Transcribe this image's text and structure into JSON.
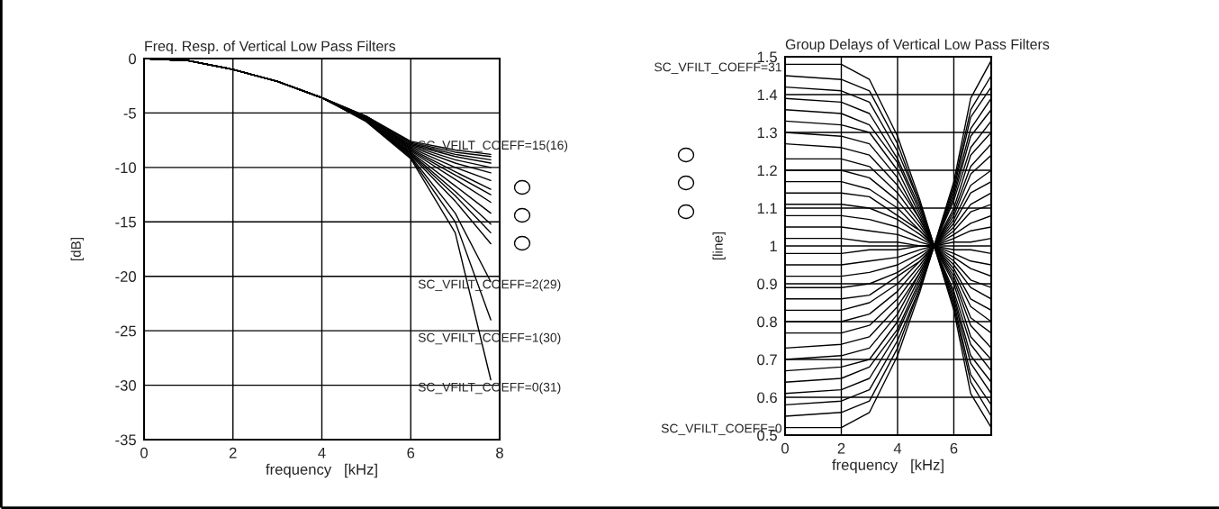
{
  "chart_data": [
    {
      "type": "line",
      "title": "Freq. Resp. of Vertical Low Pass Filters",
      "xlabel": "frequency   [kHz]",
      "ylabel": "[dB]",
      "x": [
        0,
        1,
        2,
        3,
        4,
        5,
        6,
        7,
        7.8
      ],
      "xlim": [
        0,
        8
      ],
      "ylim": [
        -35,
        0
      ],
      "xticks": [
        0,
        2,
        4,
        6,
        8
      ],
      "yticks": [
        -35,
        -30,
        -25,
        -20,
        -15,
        -10,
        -5,
        0
      ],
      "grid": true,
      "legend": false,
      "series": [
        {
          "color": "#000000",
          "values": [
            0,
            -0.2,
            -1,
            -2.1,
            -3.6,
            -5.3,
            -7.6,
            -8.4,
            -8.8
          ]
        },
        {
          "color": "#000000",
          "values": [
            0,
            -0.2,
            -1,
            -2.1,
            -3.6,
            -5.3,
            -7.7,
            -8.6,
            -9.0
          ]
        },
        {
          "color": "#000000",
          "values": [
            0,
            -0.2,
            -1,
            -2.1,
            -3.6,
            -5.3,
            -7.8,
            -8.8,
            -9.3
          ]
        },
        {
          "color": "#000000",
          "values": [
            0,
            -0.2,
            -1,
            -2.1,
            -3.6,
            -5.4,
            -7.9,
            -9.0,
            -9.6
          ]
        },
        {
          "color": "#000000",
          "values": [
            0,
            -0.2,
            -1,
            -2.1,
            -3.6,
            -5.4,
            -8.0,
            -9.3,
            -10.0
          ]
        },
        {
          "color": "#000000",
          "values": [
            0,
            -0.2,
            -1,
            -2.1,
            -3.6,
            -5.4,
            -8.1,
            -9.6,
            -10.5
          ]
        },
        {
          "color": "#000000",
          "values": [
            0,
            -0.2,
            -1,
            -2.1,
            -3.6,
            -5.4,
            -8.2,
            -10.0,
            -11.2
          ]
        },
        {
          "color": "#000000",
          "values": [
            0,
            -0.2,
            -1,
            -2.1,
            -3.6,
            -5.5,
            -8.3,
            -10.4,
            -12.0
          ]
        },
        {
          "color": "#000000",
          "values": [
            0,
            -0.2,
            -1,
            -2.1,
            -3.6,
            -5.5,
            -8.4,
            -10.7,
            -12.5
          ]
        },
        {
          "color": "#000000",
          "values": [
            0,
            -0.2,
            -1,
            -2.1,
            -3.6,
            -5.5,
            -8.5,
            -11.1,
            -13.2
          ]
        },
        {
          "color": "#000000",
          "values": [
            0,
            -0.2,
            -1,
            -2.1,
            -3.6,
            -5.6,
            -8.6,
            -11.7,
            -14.2
          ]
        },
        {
          "color": "#000000",
          "values": [
            0,
            -0.2,
            -1,
            -2.1,
            -3.6,
            -5.6,
            -8.7,
            -12.2,
            -15.2
          ]
        },
        {
          "color": "#000000",
          "values": [
            0,
            -0.2,
            -1,
            -2.1,
            -3.6,
            -5.6,
            -8.8,
            -12.6,
            -16.0
          ]
        },
        {
          "color": "#000000",
          "values": [
            0,
            -0.2,
            -1,
            -2.1,
            -3.6,
            -5.7,
            -8.9,
            -13.1,
            -17.0
          ]
        },
        {
          "color": "#000000",
          "values": [
            0,
            -0.2,
            -1,
            -2.1,
            -3.6,
            -5.7,
            -9.0,
            -14.2,
            -20.5
          ]
        },
        {
          "color": "#000000",
          "values": [
            0,
            -0.2,
            -1,
            -2.1,
            -3.6,
            -5.7,
            -9.1,
            -15.0,
            -24.0
          ]
        },
        {
          "color": "#000000",
          "values": [
            0,
            -0.2,
            -1,
            -2.1,
            -3.6,
            -5.8,
            -9.2,
            -16.0,
            -29.5
          ]
        }
      ],
      "annotations": [
        "SC_VFILT_COEFF=15(16)",
        "SC_VFILT_COEFF=2(29)",
        "SC_VFILT_COEFF=1(30)",
        "SC_VFILT_COEFF=0(31)"
      ]
    },
    {
      "type": "line",
      "title": "Group Delays of Vertical Low Pass Filters",
      "xlabel": "frequency   [kHz]",
      "ylabel": "[line]",
      "x": [
        0,
        2,
        3,
        4,
        4.8,
        5.3,
        6,
        6.6,
        7.33
      ],
      "xlim": [
        0,
        7.33
      ],
      "ylim": [
        0.5,
        1.5
      ],
      "xticks": [
        0,
        2,
        4,
        6
      ],
      "yticks": [
        0.5,
        0.6,
        0.7,
        0.8,
        0.9,
        1,
        1.1,
        1.2,
        1.3,
        1.4,
        1.5
      ],
      "grid": true,
      "legend": false,
      "series": [
        {
          "color": "#000000",
          "values": [
            0.52,
            0.52,
            0.56,
            0.71,
            0.88,
            1,
            1.17,
            1.39,
            1.49
          ]
        },
        {
          "color": "#000000",
          "values": [
            0.55,
            0.56,
            0.59,
            0.73,
            0.89,
            1,
            1.16,
            1.36,
            1.45
          ]
        },
        {
          "color": "#000000",
          "values": [
            0.58,
            0.59,
            0.62,
            0.75,
            0.89,
            1,
            1.15,
            1.34,
            1.42
          ]
        },
        {
          "color": "#000000",
          "values": [
            0.61,
            0.62,
            0.65,
            0.77,
            0.9,
            1,
            1.14,
            1.31,
            1.39
          ]
        },
        {
          "color": "#000000",
          "values": [
            0.64,
            0.65,
            0.68,
            0.78,
            0.91,
            1,
            1.13,
            1.29,
            1.36
          ]
        },
        {
          "color": "#000000",
          "values": [
            0.67,
            0.68,
            0.7,
            0.8,
            0.92,
            1,
            1.12,
            1.26,
            1.33
          ]
        },
        {
          "color": "#000000",
          "values": [
            0.7,
            0.71,
            0.73,
            0.82,
            0.93,
            1,
            1.1,
            1.24,
            1.3
          ]
        },
        {
          "color": "#000000",
          "values": [
            0.73,
            0.74,
            0.76,
            0.84,
            0.93,
            1,
            1.09,
            1.21,
            1.27
          ]
        },
        {
          "color": "#000000",
          "values": [
            0.77,
            0.77,
            0.79,
            0.86,
            0.94,
            1,
            1.08,
            1.19,
            1.24
          ]
        },
        {
          "color": "#000000",
          "values": [
            0.8,
            0.8,
            0.82,
            0.88,
            0.95,
            1,
            1.07,
            1.16,
            1.2
          ]
        },
        {
          "color": "#000000",
          "values": [
            0.83,
            0.83,
            0.85,
            0.9,
            0.96,
            1,
            1.06,
            1.14,
            1.17
          ]
        },
        {
          "color": "#000000",
          "values": [
            0.86,
            0.86,
            0.87,
            0.92,
            0.96,
            1,
            1.05,
            1.11,
            1.14
          ]
        },
        {
          "color": "#000000",
          "values": [
            0.89,
            0.89,
            0.9,
            0.93,
            0.97,
            1,
            1.04,
            1.09,
            1.11
          ]
        },
        {
          "color": "#000000",
          "values": [
            0.92,
            0.92,
            0.93,
            0.95,
            0.98,
            1,
            1.03,
            1.06,
            1.08
          ]
        },
        {
          "color": "#000000",
          "values": [
            0.95,
            0.95,
            0.96,
            0.97,
            0.99,
            1,
            1.02,
            1.04,
            1.05
          ]
        },
        {
          "color": "#000000",
          "values": [
            0.98,
            0.98,
            0.99,
            0.99,
            1,
            1,
            1.01,
            1.01,
            1.02
          ]
        },
        {
          "color": "#000000",
          "values": [
            1.02,
            1.02,
            1.01,
            1.01,
            1,
            1,
            0.99,
            0.99,
            0.98
          ]
        },
        {
          "color": "#000000",
          "values": [
            1.05,
            1.05,
            1.04,
            1.03,
            1.01,
            1,
            0.98,
            0.96,
            0.95
          ]
        },
        {
          "color": "#000000",
          "values": [
            1.08,
            1.08,
            1.07,
            1.05,
            1.02,
            1,
            0.97,
            0.94,
            0.92
          ]
        },
        {
          "color": "#000000",
          "values": [
            1.11,
            1.11,
            1.1,
            1.07,
            1.03,
            1,
            0.96,
            0.91,
            0.89
          ]
        },
        {
          "color": "#000000",
          "values": [
            1.14,
            1.14,
            1.13,
            1.08,
            1.04,
            1,
            0.95,
            0.89,
            0.86
          ]
        },
        {
          "color": "#000000",
          "values": [
            1.17,
            1.17,
            1.15,
            1.1,
            1.04,
            1,
            0.94,
            0.86,
            0.83
          ]
        },
        {
          "color": "#000000",
          "values": [
            1.2,
            1.2,
            1.18,
            1.12,
            1.05,
            1,
            0.93,
            0.84,
            0.8
          ]
        },
        {
          "color": "#000000",
          "values": [
            1.23,
            1.23,
            1.21,
            1.14,
            1.06,
            1,
            0.92,
            0.81,
            0.77
          ]
        },
        {
          "color": "#000000",
          "values": [
            1.27,
            1.26,
            1.24,
            1.16,
            1.07,
            1,
            0.91,
            0.79,
            0.73
          ]
        },
        {
          "color": "#000000",
          "values": [
            1.3,
            1.29,
            1.27,
            1.18,
            1.07,
            1,
            0.9,
            0.76,
            0.7
          ]
        },
        {
          "color": "#000000",
          "values": [
            1.33,
            1.32,
            1.3,
            1.2,
            1.08,
            1,
            0.88,
            0.74,
            0.67
          ]
        },
        {
          "color": "#000000",
          "values": [
            1.36,
            1.35,
            1.32,
            1.22,
            1.09,
            1,
            0.87,
            0.71,
            0.64
          ]
        },
        {
          "color": "#000000",
          "values": [
            1.39,
            1.38,
            1.35,
            1.23,
            1.1,
            1,
            0.86,
            0.69,
            0.61
          ]
        },
        {
          "color": "#000000",
          "values": [
            1.42,
            1.41,
            1.38,
            1.25,
            1.11,
            1,
            0.85,
            0.66,
            0.58
          ]
        },
        {
          "color": "#000000",
          "values": [
            1.45,
            1.44,
            1.41,
            1.27,
            1.11,
            1,
            0.84,
            0.64,
            0.55
          ]
        },
        {
          "color": "#000000",
          "values": [
            1.48,
            1.48,
            1.44,
            1.29,
            1.12,
            1,
            0.83,
            0.61,
            0.52
          ]
        }
      ],
      "annotations": [
        "SC_VFILT_COEFF=31",
        "SC_VFILT_COEFF=0"
      ]
    }
  ]
}
